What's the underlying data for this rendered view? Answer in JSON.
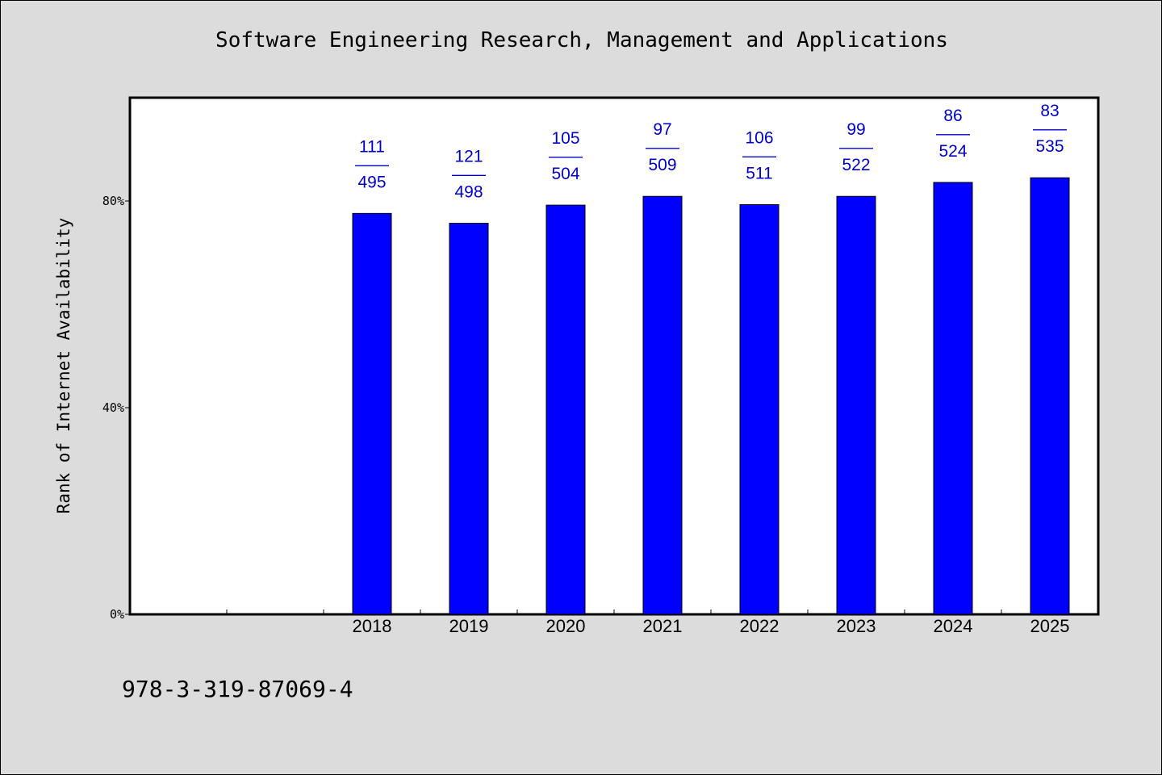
{
  "chart_data": {
    "type": "bar",
    "title": "Software Engineering Research, Management and Applications",
    "ylabel": "Rank of Internet Availability",
    "xlabel": "",
    "categories": [
      "",
      "",
      "2018",
      "2019",
      "2020",
      "2021",
      "2022",
      "2023",
      "2024",
      "2025"
    ],
    "values": [
      null,
      null,
      77.6,
      75.7,
      79.2,
      80.9,
      79.3,
      80.9,
      83.6,
      84.5
    ],
    "data_labels": [
      null,
      null,
      {
        "rank": "111",
        "sep": "——",
        "total": "495"
      },
      {
        "rank": "121",
        "sep": "——",
        "total": "498"
      },
      {
        "rank": "105",
        "sep": "——",
        "total": "504"
      },
      {
        "rank": "97",
        "sep": "——",
        "total": "509"
      },
      {
        "rank": "106",
        "sep": "——",
        "total": "511"
      },
      {
        "rank": "99",
        "sep": "——",
        "total": "522"
      },
      {
        "rank": "86",
        "sep": "——",
        "total": "524"
      },
      {
        "rank": "83",
        "sep": "——",
        "total": "535"
      }
    ],
    "ylim": [
      0,
      100
    ],
    "yticks": [
      0,
      40,
      80
    ],
    "ytick_labels": [
      "0%",
      "40%",
      "80%"
    ],
    "grid": false,
    "legend": "none",
    "colors": {
      "bar": "#0000ff",
      "bar_edge": "#000000",
      "data_label": "#0000cc",
      "background": "#dcdcdc",
      "plot_background": "#ffffff"
    }
  },
  "footer": {
    "code": "978-3-319-87069-4"
  }
}
